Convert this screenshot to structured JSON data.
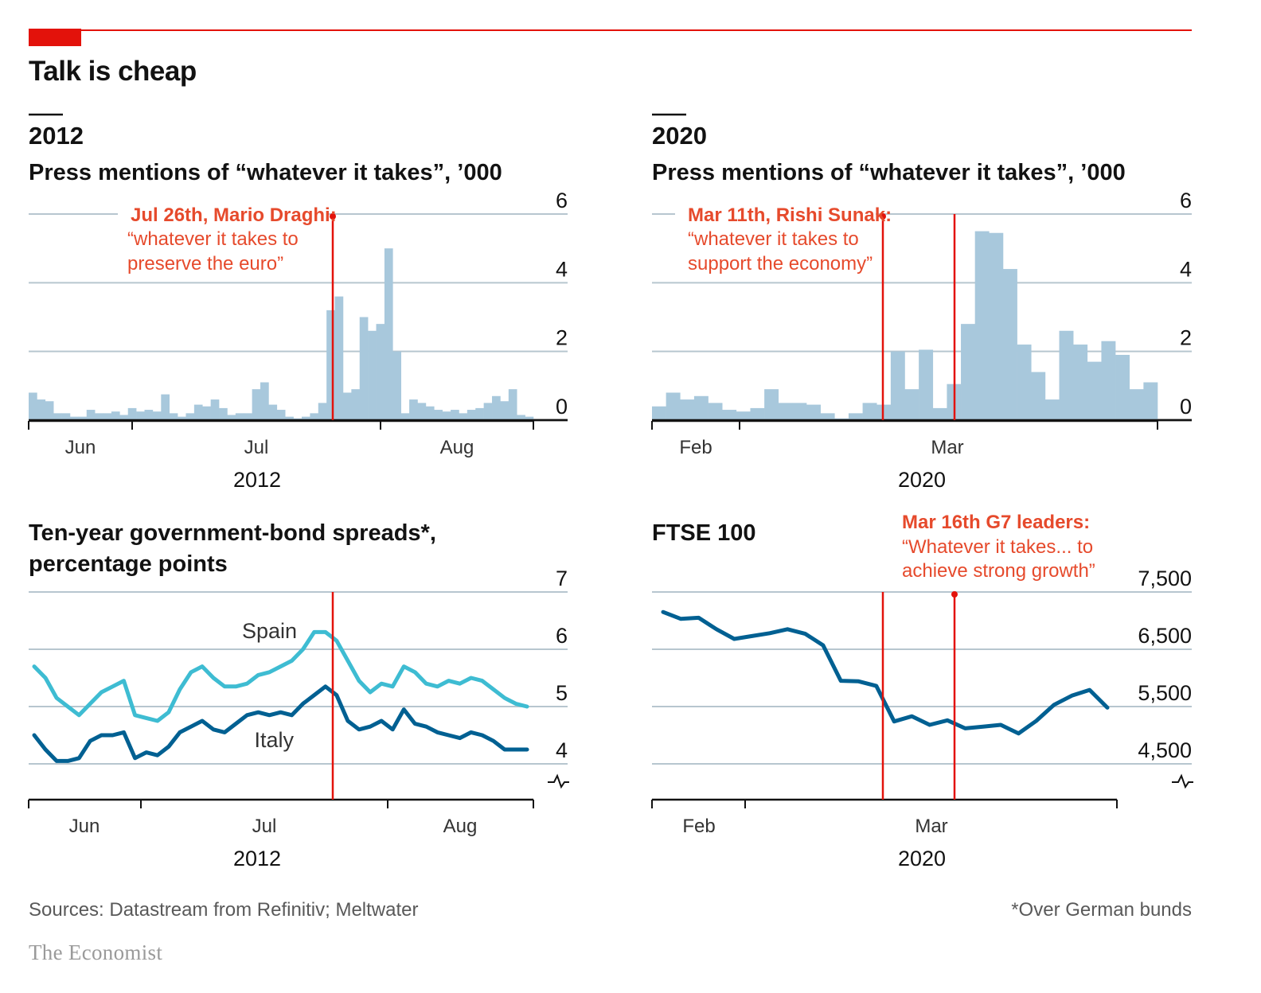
{
  "title": "Talk is cheap",
  "footer": {
    "source": "Sources: Datastream from Refinitiv; Meltwater",
    "footnote": "*Over German bunds",
    "logo": "The Economist"
  },
  "colors": {
    "accent_red": "#e3120b",
    "annotation_red": "#e64a2c",
    "bar_blue": "#a8c8dc",
    "spain": "#3ebcd2",
    "italy": "#006092",
    "ftse": "#006092",
    "grid": "#b7c6cf"
  },
  "chart_data": [
    {
      "id": "mentions2012",
      "type": "bar",
      "section_label": "2012",
      "title": "Press mentions of “whatever it takes”, ’000",
      "ylim": [
        0,
        6
      ],
      "yticks": [
        "0",
        "2",
        "4",
        "6"
      ],
      "xticks": [
        "Jun",
        "Jul",
        "Aug"
      ],
      "year_label": "2012",
      "values": [
        0.8,
        0.6,
        0.55,
        0.2,
        0.2,
        0.1,
        0.1,
        0.3,
        0.2,
        0.2,
        0.25,
        0.15,
        0.35,
        0.25,
        0.3,
        0.25,
        0.75,
        0.2,
        0.1,
        0.2,
        0.45,
        0.4,
        0.6,
        0.35,
        0.15,
        0.2,
        0.2,
        0.9,
        1.1,
        0.45,
        0.3,
        0.1,
        0.05,
        0.1,
        0.2,
        0.5,
        3.2,
        3.6,
        0.8,
        0.9,
        3.0,
        2.6,
        2.8,
        5.0,
        2.0,
        0.2,
        0.6,
        0.5,
        0.4,
        0.3,
        0.25,
        0.3,
        0.2,
        0.3,
        0.35,
        0.5,
        0.7,
        0.55,
        0.9,
        0.15,
        0.1
      ],
      "annotation": {
        "lines": [
          "Jul 26th, Mario Draghi:",
          "“whatever it takes to",
          "preserve the euro”"
        ]
      }
    },
    {
      "id": "mentions2020",
      "type": "bar",
      "section_label": "2020",
      "title": "Press mentions of “whatever it takes”, ’000",
      "ylim": [
        0,
        6
      ],
      "yticks": [
        "0",
        "2",
        "4",
        "6"
      ],
      "xticks": [
        "Feb",
        "Mar"
      ],
      "year_label": "2020",
      "values": [
        0.4,
        0.8,
        0.6,
        0.7,
        0.5,
        0.3,
        0.25,
        0.35,
        0.9,
        0.5,
        0.5,
        0.45,
        0.2,
        0.05,
        0.2,
        0.5,
        0.45,
        2.0,
        0.9,
        2.05,
        0.35,
        1.05,
        2.8,
        5.5,
        5.45,
        4.4,
        2.2,
        1.4,
        0.6,
        2.6,
        2.2,
        1.7,
        2.3,
        1.9,
        0.9,
        1.1
      ],
      "annotation": {
        "lines": [
          "Mar 11th, Rishi Sunak:",
          "“whatever it takes to",
          "support the economy”"
        ]
      }
    },
    {
      "id": "spreads",
      "type": "line",
      "title_lines": [
        "Ten-year government-bond spreads*,",
        "percentage points"
      ],
      "ylim": [
        4,
        7
      ],
      "yticks": [
        "4",
        "5",
        "6",
        "7"
      ],
      "xticks": [
        "Jun",
        "Jul",
        "Aug"
      ],
      "year_label": "2012",
      "series": [
        {
          "name": "Spain",
          "values": [
            5.7,
            5.5,
            5.15,
            5.0,
            4.85,
            5.05,
            5.25,
            5.35,
            5.45,
            4.85,
            4.8,
            4.75,
            4.9,
            5.3,
            5.6,
            5.7,
            5.5,
            5.35,
            5.35,
            5.4,
            5.55,
            5.6,
            5.7,
            5.8,
            6.0,
            6.3,
            6.3,
            6.15,
            5.8,
            5.45,
            5.25,
            5.4,
            5.35,
            5.7,
            5.6,
            5.4,
            5.35,
            5.45,
            5.4,
            5.5,
            5.45,
            5.3,
            5.15,
            5.05,
            5.0
          ]
        },
        {
          "name": "Italy",
          "values": [
            4.5,
            4.25,
            4.05,
            4.05,
            4.1,
            4.4,
            4.5,
            4.5,
            4.55,
            4.1,
            4.2,
            4.15,
            4.3,
            4.55,
            4.65,
            4.75,
            4.6,
            4.55,
            4.7,
            4.85,
            4.9,
            4.85,
            4.9,
            4.85,
            5.05,
            5.2,
            5.35,
            5.2,
            4.75,
            4.6,
            4.65,
            4.75,
            4.6,
            4.95,
            4.7,
            4.65,
            4.55,
            4.5,
            4.45,
            4.55,
            4.5,
            4.4,
            4.25,
            4.25,
            4.25
          ]
        }
      ]
    },
    {
      "id": "ftse",
      "type": "line",
      "title": "FTSE 100",
      "ylim": [
        4500,
        7500
      ],
      "yticks": [
        "4,500",
        "5,500",
        "6,500",
        "7,500"
      ],
      "xticks": [
        "Feb",
        "Mar"
      ],
      "year_label": "2020",
      "series": [
        {
          "name": "",
          "values": [
            7150,
            7030,
            7050,
            6850,
            6680,
            6730,
            6780,
            6850,
            6770,
            6570,
            5950,
            5940,
            5860,
            5240,
            5330,
            5180,
            5260,
            5120,
            5150,
            5180,
            5030,
            5250,
            5530,
            5690,
            5790,
            5480
          ]
        }
      ],
      "annotation": {
        "lines": [
          "Mar 16th G7 leaders:",
          "“Whatever it takes... to",
          "achieve strong growth”"
        ]
      }
    }
  ]
}
